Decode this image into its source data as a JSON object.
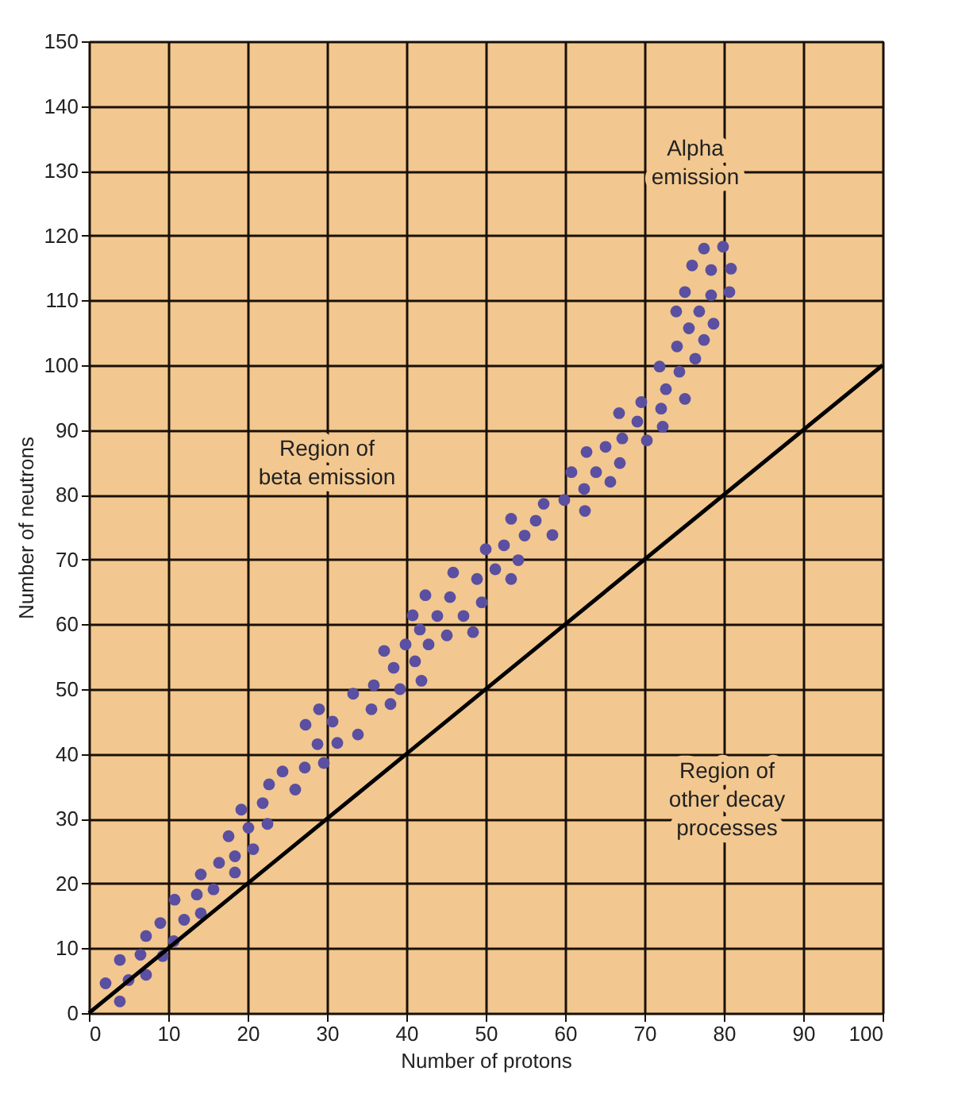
{
  "chart_data": {
    "type": "scatter",
    "xlabel": "Number of protons",
    "ylabel": "Number of neutrons",
    "xlim": [
      0,
      100
    ],
    "xticks": [
      0,
      10,
      20,
      30,
      40,
      50,
      60,
      70,
      80,
      90,
      100
    ],
    "ylim": [
      0,
      150
    ],
    "yticks": [
      0,
      10,
      20,
      30,
      40,
      50,
      60,
      70,
      80,
      90,
      100,
      110,
      120,
      130,
      140,
      150
    ],
    "grid": true,
    "annotations": [
      "Region of\nbeta emission",
      "Alpha\nemission",
      "Region of\nother decay\nprocesses"
    ],
    "series": [
      {
        "marker": "circle",
        "color": "#5a4fa0",
        "x": [
          3.9,
          2.1,
          5,
          7.2,
          3.9,
          6.5,
          9.3,
          7.2,
          10.7,
          9,
          12,
          14.1,
          10.8,
          13.6,
          15.7,
          14.1,
          16.4,
          18.4,
          18.4,
          17.6,
          20.7,
          20.1,
          22.5,
          19.2,
          21.9,
          22.7,
          26,
          24.4,
          27.2,
          29.6,
          28.8,
          31.3,
          33.9,
          27.3,
          30.7,
          29,
          35.6,
          38,
          33.3,
          35.9,
          39.2,
          38.4,
          37.2,
          39.9,
          41.9,
          41.1,
          42.8,
          41.7,
          40.8,
          43.9,
          45.1,
          48.4,
          47.2,
          42.4,
          45.5,
          49.5,
          48.9,
          45.9,
          51.2,
          53.2,
          54.1,
          50,
          52.3,
          54.9,
          53.2,
          56.3,
          58.4,
          57.3,
          59.9,
          62.5,
          62.4,
          60.8,
          63.9,
          65.7,
          62.7,
          65.1,
          66.9,
          67.2,
          70.3,
          66.8,
          69.1,
          72.3,
          69.6,
          72.1,
          75.1,
          72.7,
          71.9,
          74.4,
          76.4,
          74.1,
          77.5,
          75.6,
          78.7,
          74,
          76.9,
          75.1,
          78.4,
          80.7,
          76,
          78.4,
          80.9,
          77.5,
          79.9
        ],
        "values": [
          1.8,
          4.6,
          5.1,
          5.9,
          8.2,
          9,
          8.8,
          11.9,
          11.1,
          13.9,
          14.4,
          15.4,
          17.5,
          18.3,
          19.1,
          21.4,
          23.2,
          21.7,
          24.2,
          27.3,
          25.3,
          28.6,
          29.2,
          31.4,
          32.4,
          35.3,
          34.5,
          37.3,
          37.9,
          38.6,
          41.5,
          41.7,
          43,
          44.5,
          45,
          46.9,
          46.9,
          47.7,
          49.3,
          50.6,
          50,
          53.3,
          55.9,
          56.9,
          51.3,
          54.3,
          56.9,
          59.2,
          61.4,
          61.3,
          58.3,
          58.8,
          61.3,
          64.5,
          64.2,
          63.4,
          67,
          68,
          68.5,
          67,
          69.9,
          71.6,
          72.2,
          73.7,
          76.3,
          76,
          73.8,
          78.6,
          79.2,
          77.5,
          80.9,
          83.5,
          83.5,
          82,
          86.6,
          87.4,
          84.9,
          88.7,
          88.4,
          92.6,
          91.3,
          90.5,
          94.3,
          93.3,
          94.8,
          96.3,
          99.8,
          99,
          101,
          102.9,
          103.9,
          105.7,
          106.4,
          108.3,
          108.3,
          111.3,
          110.8,
          111.3,
          115.4,
          114.7,
          114.9,
          118,
          118.3
        ]
      },
      {
        "type": "line",
        "color": "#000000",
        "x": [
          0,
          100
        ],
        "values": [
          0,
          100
        ]
      }
    ]
  }
}
